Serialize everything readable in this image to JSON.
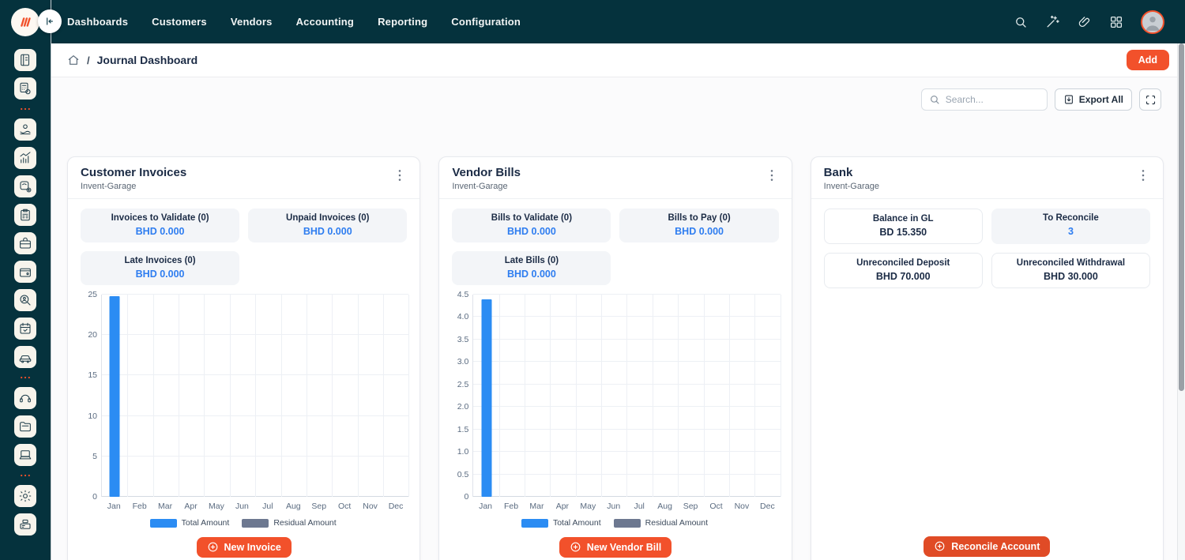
{
  "navbar": {
    "menu_items": [
      "Dashboards",
      "Customers",
      "Vendors",
      "Accounting",
      "Reporting",
      "Configuration"
    ],
    "icons": [
      "search",
      "magic-wand",
      "attachment",
      "apps-grid",
      "user-avatar"
    ]
  },
  "breadcrumb": {
    "title": "Journal Dashboard",
    "separator": "/"
  },
  "header_actions": {
    "add_label": "Add"
  },
  "toolbar": {
    "search_placeholder": "Search...",
    "export_label": "Export All"
  },
  "sidebar": {
    "items": [
      {
        "type": "icon",
        "name": "journal-book"
      },
      {
        "type": "icon",
        "name": "calculator-coin"
      },
      {
        "type": "divider"
      },
      {
        "type": "icon",
        "name": "hand-coins"
      },
      {
        "type": "icon",
        "name": "growth-chart"
      },
      {
        "type": "icon",
        "name": "scale-plus"
      },
      {
        "type": "icon",
        "name": "clipboard-calculator"
      },
      {
        "type": "icon",
        "name": "briefcase"
      },
      {
        "type": "icon",
        "name": "wallet-cash"
      },
      {
        "type": "icon",
        "name": "search-person"
      },
      {
        "type": "icon",
        "name": "calendar-check"
      },
      {
        "type": "icon",
        "name": "car"
      },
      {
        "type": "divider"
      },
      {
        "type": "icon",
        "name": "headset"
      },
      {
        "type": "icon",
        "name": "folder-documents"
      },
      {
        "type": "icon",
        "name": "laptop"
      },
      {
        "type": "divider"
      },
      {
        "type": "icon",
        "name": "gear"
      },
      {
        "type": "icon",
        "name": "cash-register"
      }
    ]
  },
  "cards": [
    {
      "title": "Customer Invoices",
      "subtitle": "Invent-Garage",
      "stats": [
        {
          "label": "Invoices to Validate (0)",
          "value": "BHD 0.000"
        },
        {
          "label": "Unpaid Invoices (0)",
          "value": "BHD 0.000"
        },
        {
          "label": "Late Invoices (0)",
          "value": "BHD 0.000"
        }
      ],
      "action_label": "New Invoice"
    },
    {
      "title": "Vendor Bills",
      "subtitle": "Invent-Garage",
      "stats": [
        {
          "label": "Bills to Validate (0)",
          "value": "BHD 0.000"
        },
        {
          "label": "Bills to Pay (0)",
          "value": "BHD 0.000"
        },
        {
          "label": "Late Bills (0)",
          "value": "BHD 0.000"
        }
      ],
      "action_label": "New Vendor Bill"
    },
    {
      "title": "Bank",
      "subtitle": "Invent-Garage",
      "stats": [
        {
          "label": "Balance in GL",
          "value": "BD 15.350"
        },
        {
          "label": "To Reconcile",
          "value": "3"
        },
        {
          "label": "Unreconciled Deposit",
          "value": "BHD 70.000"
        },
        {
          "label": "Unreconciled Withdrawal",
          "value": "BHD 30.000"
        }
      ],
      "action_label": "Reconcile Account"
    }
  ],
  "chart_data": [
    {
      "type": "bar",
      "title": "Customer Invoices - monthly amounts",
      "categories": [
        "Jan",
        "Feb",
        "Mar",
        "Apr",
        "May",
        "Jun",
        "Jul",
        "Aug",
        "Sep",
        "Oct",
        "Nov",
        "Dec"
      ],
      "series": [
        {
          "name": "Total Amount",
          "color": "#2b8cf3",
          "values": [
            24.8,
            0,
            0,
            0,
            0,
            0,
            0,
            0,
            0,
            0,
            0,
            0
          ]
        },
        {
          "name": "Residual Amount",
          "color": "#6d7890",
          "values": [
            0,
            0,
            0,
            0,
            0,
            0,
            0,
            0,
            0,
            0,
            0,
            0
          ]
        }
      ],
      "ylim": [
        0,
        25
      ],
      "yticks": [
        "0",
        "5",
        "10",
        "15",
        "20",
        "25"
      ],
      "grid": true,
      "legend_position": "bottom"
    },
    {
      "type": "bar",
      "title": "Vendor Bills - monthly amounts",
      "categories": [
        "Jan",
        "Feb",
        "Mar",
        "Apr",
        "May",
        "Jun",
        "Jul",
        "Aug",
        "Sep",
        "Oct",
        "Nov",
        "Dec"
      ],
      "series": [
        {
          "name": "Total Amount",
          "color": "#2b8cf3",
          "values": [
            4.4,
            0,
            0,
            0,
            0,
            0,
            0,
            0,
            0,
            0,
            0,
            0
          ]
        },
        {
          "name": "Residual Amount",
          "color": "#6d7890",
          "values": [
            0,
            0,
            0,
            0,
            0,
            0,
            0,
            0,
            0,
            0,
            0,
            0
          ]
        }
      ],
      "ylim": [
        0,
        4.5
      ],
      "yticks": [
        "0",
        "0.5",
        "1.0",
        "1.5",
        "2.0",
        "2.5",
        "3.0",
        "3.5",
        "4.0",
        "4.5"
      ],
      "grid": true,
      "legend_position": "bottom"
    }
  ],
  "colors": {
    "navbar_bg": "#05323d",
    "accent_orange": "#f2512b",
    "reconcile_orange": "#e04b26",
    "value_blue": "#2e7df0",
    "bar_blue": "#2b8cf3",
    "residual_gray": "#6d7890",
    "title_navy": "#1b2b45",
    "tile_gray": "#f3f5f8"
  }
}
